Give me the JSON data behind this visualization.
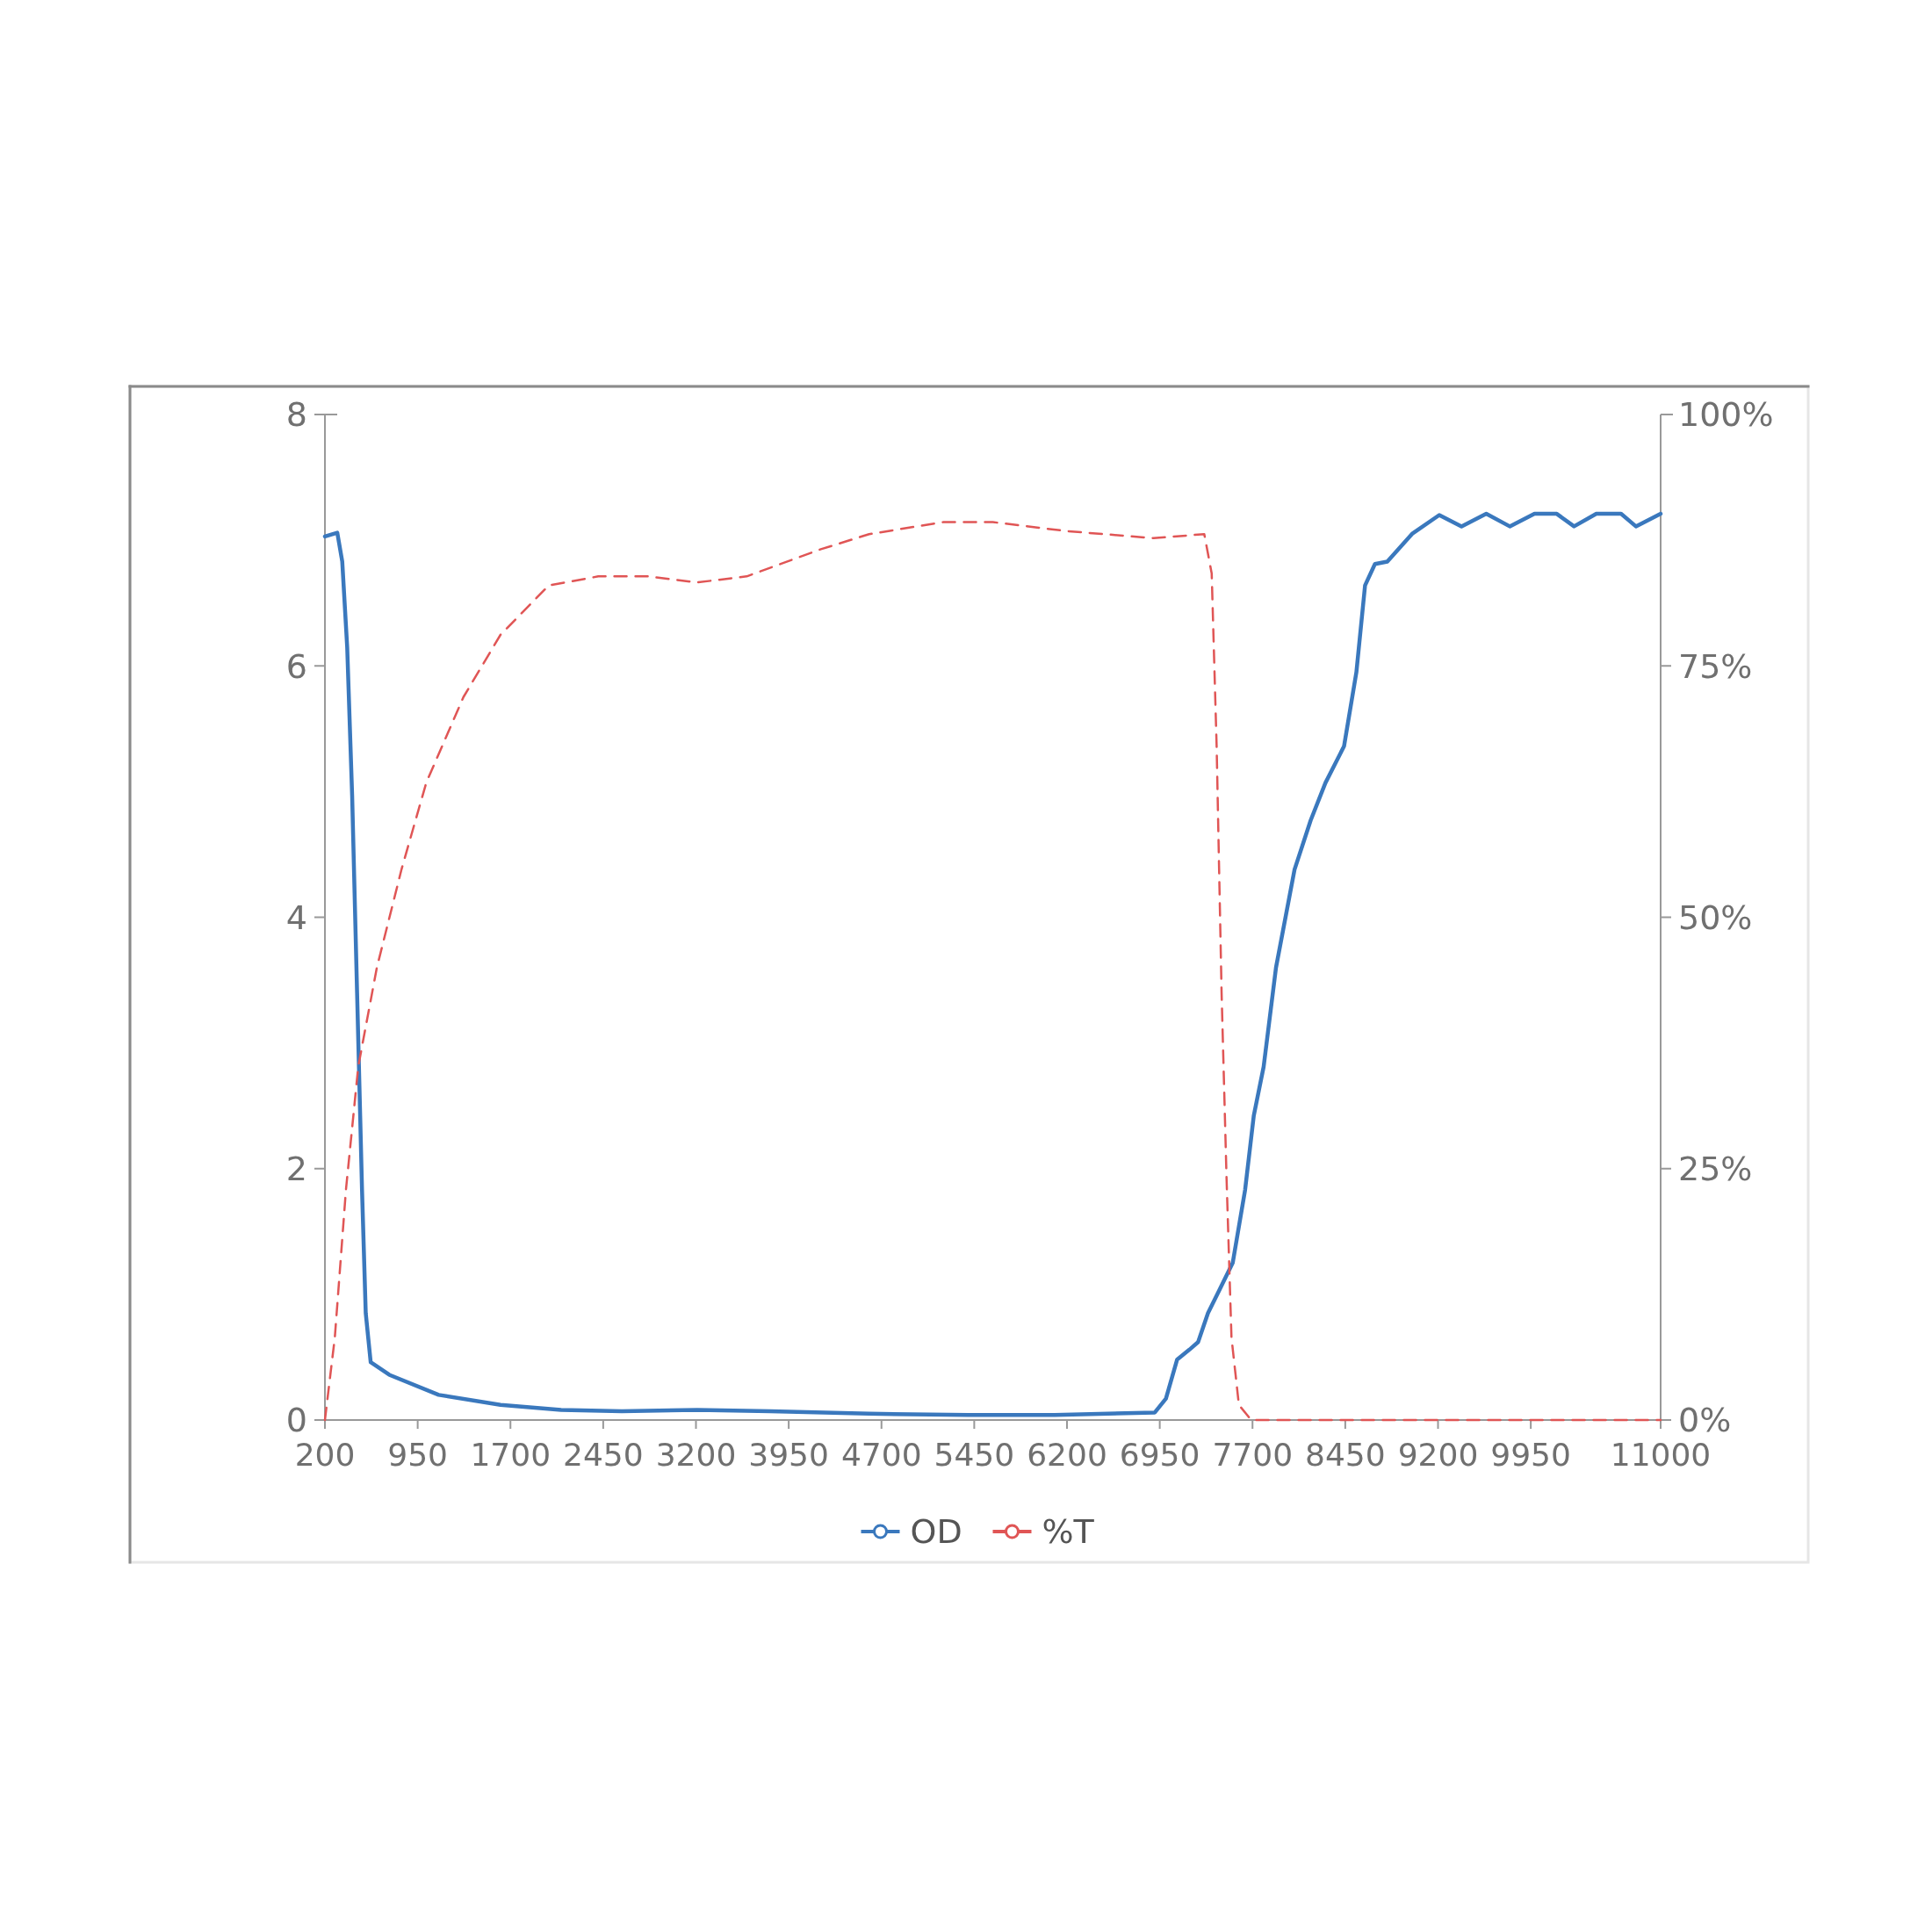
{
  "chart_data": {
    "type": "line",
    "xlim": [
      200,
      11000
    ],
    "xticks": [
      200,
      950,
      1700,
      2450,
      3200,
      3950,
      4700,
      5450,
      6200,
      6950,
      7700,
      8450,
      9200,
      9950,
      11000
    ],
    "ylim": [
      0,
      8
    ],
    "yticks": [
      0,
      2,
      4,
      6,
      8
    ],
    "y2lim": [
      0,
      100
    ],
    "y2ticks": [
      {
        "value": 0,
        "label": "0%"
      },
      {
        "value": 25,
        "label": "25%"
      },
      {
        "value": 50,
        "label": "50%"
      },
      {
        "value": 75,
        "label": "75%"
      },
      {
        "value": 100,
        "label": "100%"
      }
    ],
    "legend": "bottom",
    "grid": false,
    "series": [
      {
        "name": "OD",
        "color": "#3a78bd",
        "line_style": "solid",
        "x": [
          200,
          300,
          340,
          380,
          420,
          460,
          500,
          530,
          570,
          720,
          1120,
          1620,
          2110,
          2600,
          3210,
          3800,
          4600,
          5400,
          6100,
          6910,
          7000,
          7090,
          7190,
          7260,
          7340,
          7440,
          7540,
          7640,
          7710,
          7790,
          7890,
          8040,
          8170,
          8290,
          8440,
          8540,
          8610,
          8690,
          8790,
          8990,
          9210,
          9390,
          9590,
          9780,
          9980,
          10160,
          10300,
          10480,
          10680,
          10800,
          11000
        ],
        "values": [
          7.03,
          7.06,
          6.83,
          6.15,
          4.97,
          3.4,
          1.83,
          0.85,
          0.46,
          0.36,
          0.2,
          0.12,
          0.08,
          0.07,
          0.08,
          0.07,
          0.05,
          0.04,
          0.04,
          0.06,
          0.17,
          0.48,
          0.56,
          0.62,
          0.85,
          1.05,
          1.25,
          1.83,
          2.42,
          2.81,
          3.6,
          4.38,
          4.77,
          5.07,
          5.36,
          5.95,
          6.64,
          6.81,
          6.83,
          7.05,
          7.2,
          7.11,
          7.21,
          7.11,
          7.21,
          7.21,
          7.11,
          7.21,
          7.21,
          7.11,
          7.21
        ]
      },
      {
        "name": "%T",
        "color": "#e05555",
        "line_style": "dashed",
        "axis": "y2",
        "x": [
          200,
          280,
          370,
          470,
          620,
          820,
          1020,
          1320,
          1620,
          2010,
          2410,
          2810,
          3210,
          3610,
          4210,
          4600,
          5200,
          5600,
          6200,
          6900,
          7310,
          7370,
          7410,
          7450,
          7490,
          7530,
          7590,
          7690,
          11000
        ],
        "values": [
          0,
          8.2,
          22.9,
          35.2,
          45,
          54.8,
          63.4,
          71.9,
          78.1,
          83,
          83.9,
          83.9,
          83.3,
          83.9,
          86.6,
          88.1,
          89.3,
          89.3,
          88.4,
          87.7,
          88.1,
          84.2,
          67,
          42.5,
          24.1,
          8.2,
          1.5,
          0,
          0
        ]
      }
    ]
  }
}
